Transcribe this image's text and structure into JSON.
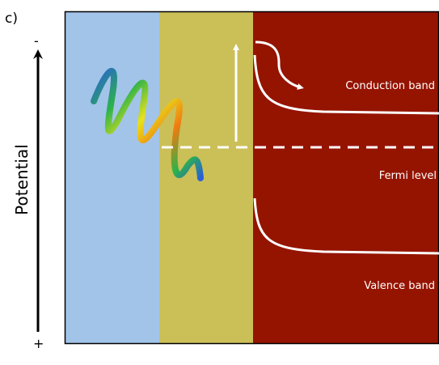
{
  "panel_label": "c)",
  "axis": {
    "title": "Potential",
    "top_sign": "-",
    "bottom_sign": "+"
  },
  "labels": {
    "conduction_band": "Conduction band",
    "fermi_level": "Fermi level",
    "valence_band": "Valence band"
  }
}
